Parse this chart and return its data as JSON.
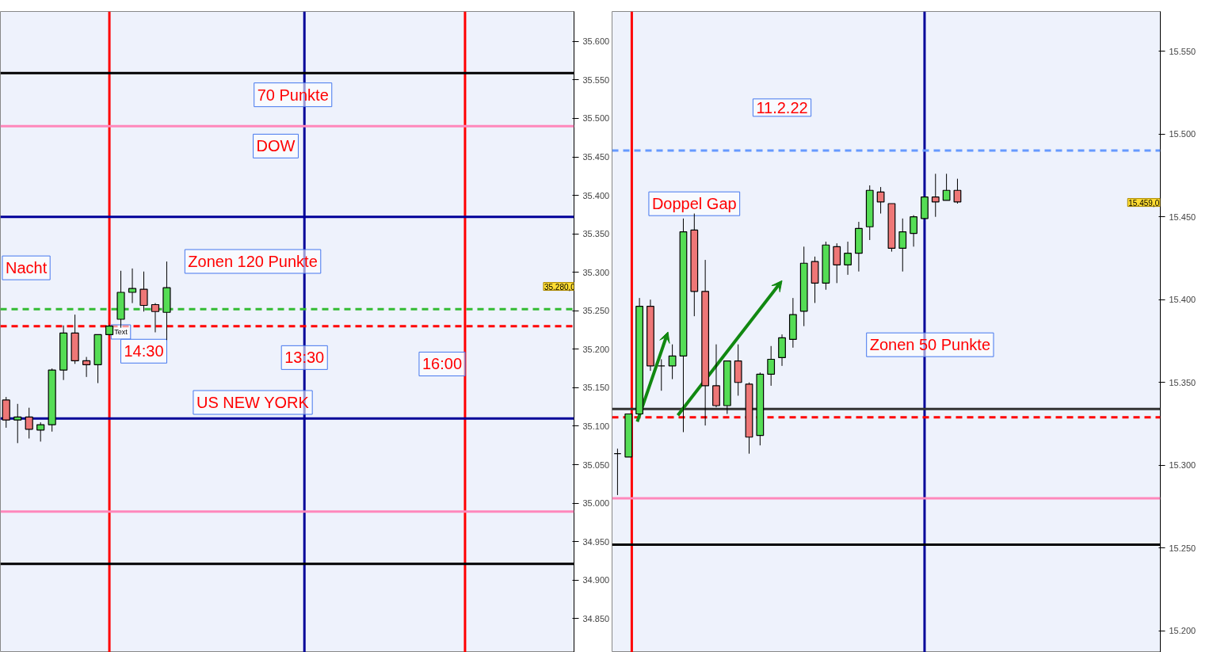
{
  "chart_data": [
    {
      "type": "candlestick",
      "tick_labels": "y",
      "grid": false,
      "categories": [
        null,
        null,
        null,
        null,
        null,
        null,
        null,
        null,
        null,
        null,
        null,
        null,
        null,
        null,
        null,
        null,
        null,
        null,
        null,
        null,
        null,
        null,
        null,
        null,
        null,
        null,
        null,
        null,
        null,
        null,
        null,
        null,
        null,
        null,
        null,
        null,
        null,
        null,
        null,
        null,
        null,
        null,
        null,
        null,
        null,
        null,
        null,
        null,
        null,
        null
      ],
      "ohlc": [
        [
          35134,
          35138,
          35098,
          35108
        ],
        [
          35108,
          35129,
          35078,
          35112
        ],
        [
          35112,
          35124,
          35084,
          35096
        ],
        [
          35095,
          35105,
          35080,
          35102
        ],
        [
          35102,
          35175,
          35093,
          35173
        ],
        [
          35173,
          35231,
          35160,
          35221
        ],
        [
          35221,
          35245,
          35181,
          35185
        ],
        [
          35185,
          35190,
          35164,
          35180
        ],
        [
          35180,
          35219,
          35156,
          35219
        ],
        [
          35219,
          35232,
          35218,
          35230
        ],
        [
          35239,
          35302,
          35228,
          35274
        ],
        [
          35274,
          35305,
          35260,
          35279
        ],
        [
          35278,
          35301,
          35249,
          35257
        ],
        [
          35258,
          35260,
          35222,
          35249
        ],
        [
          35248,
          35314,
          35212,
          35280
        ],
        null,
        null,
        null,
        null,
        null,
        null,
        null,
        null,
        null,
        null,
        null,
        null,
        null,
        null,
        null,
        null,
        null,
        null,
        null,
        null,
        null,
        null,
        null,
        null,
        null,
        null,
        null,
        null,
        null,
        null,
        null,
        null,
        null,
        null,
        null
      ],
      "ylim": [
        34806,
        35639
      ],
      "yticks": [
        {
          "value": 34850,
          "label": "34.850"
        },
        {
          "value": 34900,
          "label": "34.900"
        },
        {
          "value": 34950,
          "label": "34.950"
        },
        {
          "value": 35000,
          "label": "35.000"
        },
        {
          "value": 35050,
          "label": "35.050"
        },
        {
          "value": 35100,
          "label": "35.100"
        },
        {
          "value": 35150,
          "label": "35.150"
        },
        {
          "value": 35200,
          "label": "35.200"
        },
        {
          "value": 35250,
          "label": "35.250"
        },
        {
          "value": 35300,
          "label": "35.300"
        },
        {
          "value": 35350,
          "label": "35.350"
        },
        {
          "value": 35400,
          "label": "35.400"
        },
        {
          "value": 35450,
          "label": "35.450"
        },
        {
          "value": 35500,
          "label": "35.500"
        },
        {
          "value": 35550,
          "label": "35.550"
        },
        {
          "value": 35600,
          "label": "35.600"
        }
      ],
      "ref_lines": [
        {
          "axis": "y",
          "value": 35559,
          "color": "#000000",
          "line_style": "solid"
        },
        {
          "axis": "y",
          "value": 35490,
          "color": "#ff88bb",
          "line_style": "solid"
        },
        {
          "axis": "y",
          "value": 35372,
          "color": "#000099",
          "line_style": "solid"
        },
        {
          "axis": "y",
          "value": 35252,
          "color": "#33bb33",
          "line_style": "dashed"
        },
        {
          "axis": "y",
          "value": 35230,
          "color": "#ff0000",
          "line_style": "dashed"
        },
        {
          "axis": "y",
          "value": 35110,
          "color": "#000099",
          "line_style": "solid"
        },
        {
          "axis": "y",
          "value": 34989,
          "color": "#ff88bb",
          "line_style": "solid"
        },
        {
          "axis": "y",
          "value": 34921,
          "color": "#000000",
          "line_style": "solid"
        }
      ],
      "annotations": [
        "Nacht",
        "70 Punkte",
        "DOW",
        "Zonen 120 Punkte",
        "Text",
        "14:30",
        "13:30",
        "16:00",
        "US NEW YORK",
        "35.280,0"
      ]
    },
    {
      "type": "candlestick",
      "tick_labels": "y",
      "grid": false,
      "categories": [
        null,
        null,
        null,
        null,
        null,
        null,
        null,
        null,
        null,
        null,
        null,
        null,
        null,
        null,
        null,
        null,
        null,
        null,
        null,
        null,
        null,
        null,
        null,
        null,
        null,
        null,
        null,
        null,
        null,
        null,
        null,
        null,
        null,
        null,
        null,
        null,
        null,
        null,
        null,
        null,
        null,
        null,
        null,
        null,
        null,
        null,
        null,
        null,
        null,
        null
      ],
      "ohlc": [
        [
          15307,
          15310,
          15282,
          15307
        ],
        [
          15305,
          15331,
          15305,
          15331
        ],
        [
          15331,
          15401,
          15331,
          15396
        ],
        [
          15396,
          15400,
          15357,
          15360
        ],
        [
          15360,
          15364,
          15345,
          15360
        ],
        [
          15360,
          15373,
          15352,
          15366
        ],
        [
          15366,
          15449,
          15320,
          15441
        ],
        [
          15442,
          15452,
          15390,
          15405
        ],
        [
          15405,
          15424,
          15324,
          15348
        ],
        [
          15348,
          15373,
          15335,
          15336
        ],
        [
          15336,
          15363,
          15331,
          15363
        ],
        [
          15363,
          15373,
          15342,
          15350
        ],
        [
          15349,
          15350,
          15307,
          15317
        ],
        [
          15318,
          15356,
          15312,
          15355
        ],
        [
          15355,
          15372,
          15348,
          15364
        ],
        [
          15365,
          15379,
          15360,
          15377
        ],
        [
          15376,
          15401,
          15371,
          15391
        ],
        [
          15393,
          15432,
          15384,
          15422
        ],
        [
          15423,
          15426,
          15398,
          15410
        ],
        [
          15410,
          15435,
          15406,
          15433
        ],
        [
          15432,
          15434,
          15410,
          15421
        ],
        [
          15421,
          15435,
          15415,
          15428
        ],
        [
          15428,
          15447,
          15417,
          15443
        ],
        [
          15444,
          15469,
          15436,
          15466
        ],
        [
          15465,
          15468,
          15452,
          15459
        ],
        [
          15458,
          15458,
          15429,
          15431
        ],
        [
          15431,
          15449,
          15417,
          15441
        ],
        [
          15440,
          15451,
          15432,
          15450
        ],
        [
          15449,
          15462,
          15449,
          15462
        ],
        [
          15462,
          15476,
          15450,
          15459
        ],
        [
          15460,
          15476,
          15460,
          15466
        ],
        [
          15466,
          15473,
          15458,
          15459
        ],
        null,
        null,
        null,
        null,
        null,
        null,
        null,
        null,
        null,
        null,
        null,
        null,
        null,
        null,
        null,
        null,
        null,
        null
      ],
      "ylim": [
        15187,
        15574
      ],
      "yticks": [
        {
          "value": 15200,
          "label": "15.200"
        },
        {
          "value": 15250,
          "label": "15.250"
        },
        {
          "value": 15300,
          "label": "15.300"
        },
        {
          "value": 15350,
          "label": "15.350"
        },
        {
          "value": 15400,
          "label": "15.400"
        },
        {
          "value": 15450,
          "label": "15.450"
        },
        {
          "value": 15500,
          "label": "15.500"
        },
        {
          "value": 15550,
          "label": "15.550"
        }
      ],
      "ref_lines": [
        {
          "axis": "y",
          "value": 15490,
          "color": "#6699ff",
          "line_style": "dashed"
        },
        {
          "axis": "y",
          "value": 15334,
          "color": "#333333",
          "line_style": "solid"
        },
        {
          "axis": "y",
          "value": 15329,
          "color": "#ff0000",
          "line_style": "dashed"
        },
        {
          "axis": "y",
          "value": 15280,
          "color": "#ff88bb",
          "line_style": "solid"
        },
        {
          "axis": "y",
          "value": 15252,
          "color": "#000000",
          "line_style": "solid"
        }
      ],
      "annotations": [
        "11.2.22",
        "Doppel Gap",
        "Zonen 50 Punkte",
        "15.459,0"
      ]
    }
  ]
}
